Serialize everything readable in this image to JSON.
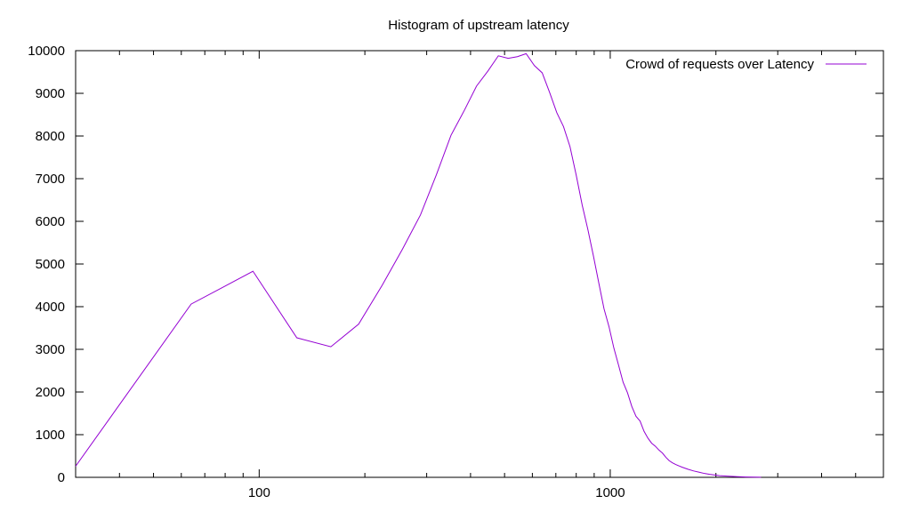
{
  "chart_data": {
    "type": "line",
    "title": "Histogram of upstream latency",
    "xlabel": "",
    "ylabel": "",
    "xscale": "log",
    "xlim": [
      30,
      6000
    ],
    "ylim": [
      0,
      10000
    ],
    "x_ticks": [
      100,
      1000
    ],
    "x_tick_labels": [
      "100",
      "1000"
    ],
    "y_ticks": [
      0,
      1000,
      2000,
      3000,
      4000,
      5000,
      6000,
      7000,
      8000,
      9000,
      10000
    ],
    "y_tick_labels": [
      "0",
      "1000",
      "2000",
      "3000",
      "4000",
      "5000",
      "6000",
      "7000",
      "8000",
      "9000",
      "10000"
    ],
    "grid": false,
    "legend_position": "top-right",
    "series": [
      {
        "name": "Crowd of requests over Latency",
        "color": "#9400d3",
        "x": [
          30,
          64,
          96,
          128,
          160,
          192,
          224,
          256,
          288,
          320,
          352,
          384,
          416,
          448,
          480,
          512,
          544,
          576,
          608,
          640,
          672,
          704,
          736,
          768,
          800,
          832,
          864,
          896,
          928,
          960,
          992,
          1024,
          1056,
          1088,
          1120,
          1152,
          1184,
          1216,
          1248,
          1280,
          1312,
          1344,
          1376,
          1408,
          1440,
          1472,
          1504,
          1536,
          1600,
          1664,
          1728,
          1792,
          1856,
          1920,
          2048,
          2176,
          2304,
          2432,
          2560,
          2688
        ],
        "y": [
          260,
          4060,
          4830,
          3270,
          3060,
          3590,
          4500,
          5350,
          6150,
          7100,
          8020,
          8600,
          9170,
          9520,
          9880,
          9820,
          9860,
          9930,
          9650,
          9480,
          9020,
          8550,
          8220,
          7750,
          7080,
          6380,
          5800,
          5180,
          4550,
          3950,
          3530,
          3030,
          2630,
          2230,
          1980,
          1660,
          1430,
          1320,
          1080,
          920,
          800,
          730,
          640,
          570,
          470,
          390,
          340,
          300,
          240,
          190,
          150,
          120,
          90,
          70,
          40,
          25,
          15,
          8,
          4,
          2
        ]
      }
    ]
  }
}
